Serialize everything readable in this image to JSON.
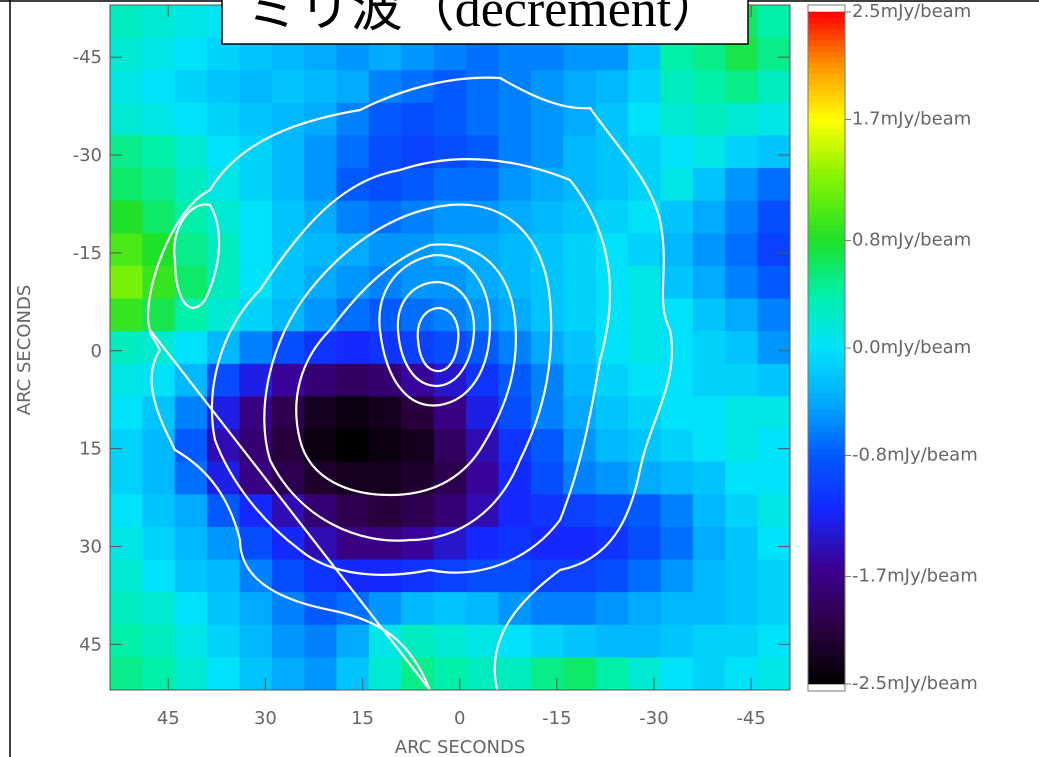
{
  "chart_data": {
    "type": "heatmap",
    "title": "ミリ波（decrement）",
    "xlabel": "ARC SECONDS",
    "ylabel": "ARC SECONDS",
    "xlim": [
      54,
      -51
    ],
    "ylim": [
      -53,
      52
    ],
    "xticks": [
      45,
      30,
      15,
      0,
      -15,
      -30,
      -45
    ],
    "yticks": [
      -45,
      -30,
      -15,
      0,
      15,
      30,
      45
    ],
    "x": [
      51.5,
      46.5,
      41.5,
      36.5,
      31.5,
      26.5,
      21.5,
      16.5,
      11.5,
      6.5,
      1.5,
      -3.5,
      -8.5,
      -13.5,
      -18.5,
      -23.5,
      -28.5,
      -33.5,
      -38.5,
      -43.5,
      -48.5
    ],
    "y": [
      -50.5,
      -45.5,
      -40.5,
      -35.5,
      -30.5,
      -25.5,
      -20.5,
      -15.5,
      -10.5,
      -5.5,
      -0.5,
      4.5,
      9.5,
      14.5,
      19.5,
      24.5,
      29.5,
      34.5,
      39.5,
      44.5,
      49.5
    ],
    "colorbar_ticks": [
      {
        "value": 2.5,
        "label": "2.5mJy/beam"
      },
      {
        "value": 1.7,
        "label": "1.7mJy/beam"
      },
      {
        "value": 0.8,
        "label": "0.8mJy/beam"
      },
      {
        "value": 0,
        "label": "0.0mJy/beam"
      },
      {
        "value": -0.8,
        "label": "-0.8mJy/beam"
      },
      {
        "value": -1.7,
        "label": "-1.7mJy/beam"
      },
      {
        "value": -2.5,
        "label": "-2.5mJy/beam"
      }
    ],
    "z": [
      [
        0.3,
        0.2,
        0.1,
        0.0,
        -0.2,
        -0.3,
        -0.4,
        -0.3,
        -0.3,
        -0.4,
        -0.5,
        -0.6,
        -0.7,
        -0.6,
        -0.5,
        -0.6,
        -0.3,
        0.3,
        0.5,
        0.6,
        0.4
      ],
      [
        0.2,
        0.1,
        0.0,
        -0.1,
        -0.2,
        -0.3,
        -0.4,
        -0.5,
        -0.4,
        -0.5,
        -0.6,
        -0.7,
        -0.6,
        -0.6,
        -0.5,
        -0.5,
        -0.2,
        0.4,
        0.5,
        0.7,
        0.5
      ],
      [
        0.1,
        0.0,
        -0.1,
        -0.2,
        -0.3,
        -0.2,
        -0.3,
        -0.4,
        -0.6,
        -0.7,
        -0.8,
        -0.7,
        -0.6,
        -0.5,
        -0.4,
        -0.3,
        -0.1,
        0.3,
        0.4,
        0.5,
        0.3
      ],
      [
        0.2,
        0.1,
        0.0,
        -0.1,
        -0.2,
        -0.3,
        -0.4,
        -0.6,
        -0.8,
        -0.9,
        -0.8,
        -0.7,
        -0.6,
        -0.5,
        -0.4,
        -0.2,
        0.0,
        0.2,
        0.3,
        0.2,
        0.1
      ],
      [
        0.5,
        0.4,
        0.2,
        0.0,
        -0.1,
        -0.3,
        -0.5,
        -0.7,
        -0.9,
        -1.0,
        -0.9,
        -0.8,
        -0.6,
        -0.5,
        -0.3,
        -0.2,
        -0.1,
        0.0,
        0.1,
        -0.1,
        -0.2
      ],
      [
        0.6,
        0.5,
        0.3,
        0.1,
        -0.1,
        -0.3,
        -0.5,
        -0.8,
        -0.9,
        -0.8,
        -0.7,
        -0.7,
        -0.5,
        -0.4,
        -0.3,
        -0.2,
        -0.1,
        0.1,
        -0.2,
        -0.5,
        -0.7
      ],
      [
        0.8,
        0.6,
        0.4,
        0.2,
        0.0,
        -0.2,
        -0.4,
        -0.6,
        -0.7,
        -0.6,
        -0.5,
        -0.5,
        -0.4,
        -0.3,
        -0.2,
        -0.1,
        0.0,
        -0.2,
        -0.4,
        -0.6,
        -0.9
      ],
      [
        1.0,
        0.8,
        0.5,
        0.3,
        0.0,
        -0.2,
        -0.3,
        -0.4,
        -0.5,
        -0.5,
        -0.4,
        -0.4,
        -0.3,
        -0.2,
        -0.1,
        0.0,
        -0.1,
        -0.3,
        -0.5,
        -0.7,
        -1.0
      ],
      [
        1.2,
        0.9,
        0.6,
        0.3,
        0.0,
        -0.2,
        -0.4,
        -0.5,
        -0.6,
        -0.5,
        -0.5,
        -0.4,
        -0.3,
        -0.2,
        -0.1,
        0.0,
        0.1,
        -0.2,
        -0.4,
        -0.6,
        -0.8
      ],
      [
        0.9,
        0.7,
        0.4,
        0.2,
        -0.1,
        -0.3,
        -0.5,
        -0.7,
        -0.8,
        -0.7,
        -0.6,
        -0.5,
        -0.4,
        -0.2,
        -0.1,
        0.0,
        0.1,
        0.0,
        -0.2,
        -0.4,
        -0.6
      ],
      [
        0.3,
        0.2,
        0.0,
        -0.3,
        -0.6,
        -0.9,
        -1.1,
        -1.2,
        -1.1,
        -1.0,
        -0.9,
        -0.8,
        -0.6,
        -0.4,
        -0.2,
        0.0,
        0.1,
        0.0,
        -0.1,
        -0.2,
        -0.5
      ],
      [
        0.1,
        0.0,
        -0.3,
        -0.9,
        -1.3,
        -1.6,
        -1.8,
        -1.9,
        -1.8,
        -1.6,
        -1.4,
        -1.1,
        -0.8,
        -0.6,
        -0.3,
        -0.1,
        0.0,
        0.0,
        -0.1,
        -0.1,
        -0.2
      ],
      [
        0.0,
        -0.2,
        -0.6,
        -1.3,
        -1.7,
        -2.0,
        -2.3,
        -2.4,
        -2.3,
        -2.1,
        -1.7,
        -1.3,
        -0.9,
        -0.6,
        -0.4,
        -0.2,
        -0.1,
        0.0,
        0.0,
        0.1,
        0.1
      ],
      [
        -0.1,
        -0.3,
        -0.8,
        -1.5,
        -1.8,
        -2.1,
        -2.4,
        -2.5,
        -2.4,
        -2.3,
        -1.9,
        -1.5,
        -1.1,
        -0.8,
        -0.5,
        -0.3,
        -0.2,
        -0.1,
        0.0,
        0.1,
        0.0
      ],
      [
        -0.1,
        -0.3,
        -0.7,
        -1.3,
        -1.7,
        -2.0,
        -2.2,
        -2.3,
        -2.3,
        -2.2,
        -2.0,
        -1.6,
        -1.2,
        -0.9,
        -0.6,
        -0.5,
        -0.4,
        -0.3,
        -0.2,
        0.0,
        0.0
      ],
      [
        0.0,
        -0.2,
        -0.4,
        -0.8,
        -1.2,
        -1.5,
        -1.8,
        -2.0,
        -2.1,
        -2.0,
        -1.8,
        -1.5,
        -1.2,
        -1.1,
        -1.0,
        -0.9,
        -0.8,
        -0.6,
        -0.3,
        -0.1,
        0.1
      ],
      [
        0.1,
        -0.1,
        -0.3,
        -0.5,
        -0.9,
        -1.2,
        -1.5,
        -1.7,
        -1.7,
        -1.6,
        -1.4,
        -1.2,
        -1.1,
        -1.2,
        -1.2,
        -1.1,
        -0.9,
        -0.7,
        -0.4,
        -0.2,
        0.0
      ],
      [
        0.2,
        0.0,
        -0.2,
        -0.3,
        -0.6,
        -0.9,
        -1.1,
        -1.2,
        -1.2,
        -1.1,
        -1.0,
        -0.9,
        -0.9,
        -1.0,
        -1.0,
        -0.9,
        -0.7,
        -0.5,
        -0.3,
        -0.2,
        -0.1
      ],
      [
        0.3,
        0.2,
        0.0,
        -0.2,
        -0.4,
        -0.6,
        -0.8,
        -0.7,
        -0.5,
        -0.3,
        -0.2,
        -0.3,
        -0.5,
        -0.6,
        -0.6,
        -0.5,
        -0.4,
        -0.3,
        -0.3,
        -0.2,
        -0.1
      ],
      [
        0.4,
        0.3,
        0.1,
        -0.1,
        -0.3,
        -0.5,
        -0.6,
        -0.4,
        0.1,
        0.3,
        0.2,
        0.1,
        0.0,
        -0.1,
        -0.2,
        -0.3,
        -0.3,
        -0.2,
        -0.1,
        -0.1,
        0.0
      ],
      [
        0.5,
        0.4,
        0.2,
        0.0,
        -0.2,
        -0.4,
        -0.5,
        -0.2,
        0.2,
        0.5,
        0.4,
        0.3,
        0.3,
        0.5,
        0.6,
        0.4,
        0.2,
        0.0,
        -0.1,
        0.0,
        0.1
      ]
    ]
  }
}
